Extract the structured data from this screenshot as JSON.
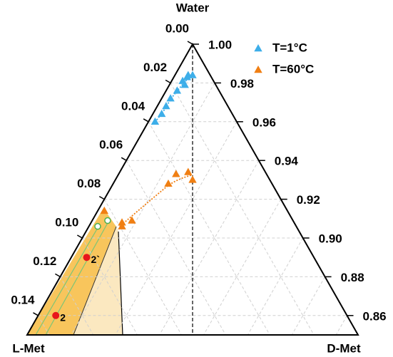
{
  "chart_data": {
    "type": "ternary",
    "top_label": "Water",
    "left_label": "L-Met",
    "right_label": "D-Met",
    "wlim": [
      0.85,
      1.0
    ],
    "left_ticks": [
      {
        "value": 0,
        "label": "0.00"
      },
      {
        "value": 0.02,
        "label": "0.02"
      },
      {
        "value": 0.04,
        "label": "0.04"
      },
      {
        "value": 0.06,
        "label": "0.06"
      },
      {
        "value": 0.08,
        "label": "0.08"
      },
      {
        "value": 0.1,
        "label": "0.10"
      },
      {
        "value": 0.12,
        "label": "0.12"
      },
      {
        "value": 0.14,
        "label": "0.14"
      }
    ],
    "right_ticks": [
      {
        "value": 1,
        "label": "1.00"
      },
      {
        "value": 0.98,
        "label": "0.98"
      },
      {
        "value": 0.96,
        "label": "0.96"
      },
      {
        "value": 0.94,
        "label": "0.94"
      },
      {
        "value": 0.92,
        "label": "0.92"
      },
      {
        "value": 0.9,
        "label": "0.90"
      },
      {
        "value": 0.88,
        "label": "0.88"
      },
      {
        "value": 0.86,
        "label": "0.86"
      }
    ],
    "grid": true,
    "series": [
      {
        "name": "T=1°C",
        "color": "#3daee9",
        "water": [
          0.984,
          0.984,
          0.983,
          0.981,
          0.979,
          0.976,
          0.972,
          0.968,
          0.964,
          0.96
        ],
        "l_met": [
          0.008,
          0.01,
          0.011,
          0.014,
          0.014,
          0.019,
          0.024,
          0.028,
          0.032,
          0.037
        ]
      },
      {
        "name": "T=60°C",
        "color": "#f07f13",
        "water": [
          0.93,
          0.934,
          0.933,
          0.928,
          0.909,
          0.908,
          0.906,
          0.914
        ],
        "l_met": [
          0.035,
          0.035,
          0.041,
          0.047,
          0.073,
          0.078,
          0.079,
          0.083
        ]
      }
    ],
    "open_circles": {
      "color": "#4caf50",
      "water": [
        0.906,
        0.909
      ],
      "l_met": [
        0.09,
        0.084
      ]
    },
    "labeled_points": {
      "color": "#e8151b",
      "labels": [
        "2`",
        "2"
      ],
      "water": [
        0.89,
        0.86
      ],
      "l_met": [
        0.103,
        0.132
      ]
    }
  }
}
